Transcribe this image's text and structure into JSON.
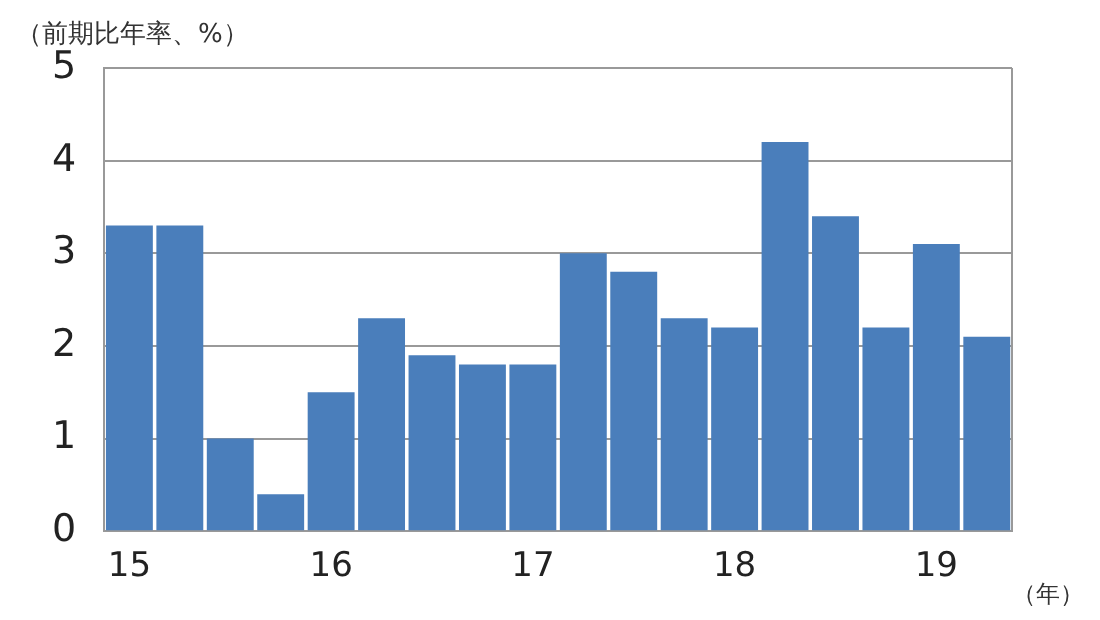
{
  "chart_data": {
    "type": "bar",
    "ylabel": "（前期比年率、%）",
    "xlabel": "（年）",
    "categories": [
      "15",
      null,
      null,
      null,
      "16",
      null,
      null,
      null,
      "17",
      null,
      null,
      null,
      "18",
      null,
      null,
      null,
      "19",
      null
    ],
    "values": [
      3.3,
      3.3,
      1.0,
      0.4,
      1.5,
      2.3,
      1.9,
      1.8,
      1.8,
      3.0,
      2.8,
      2.3,
      2.2,
      4.2,
      3.4,
      2.2,
      3.1,
      2.1
    ],
    "color": "#4a7ebb",
    "ylim": [
      0,
      5
    ],
    "yticks": [
      0,
      1,
      2,
      3,
      4,
      5
    ],
    "grid": "y",
    "legend": false
  }
}
